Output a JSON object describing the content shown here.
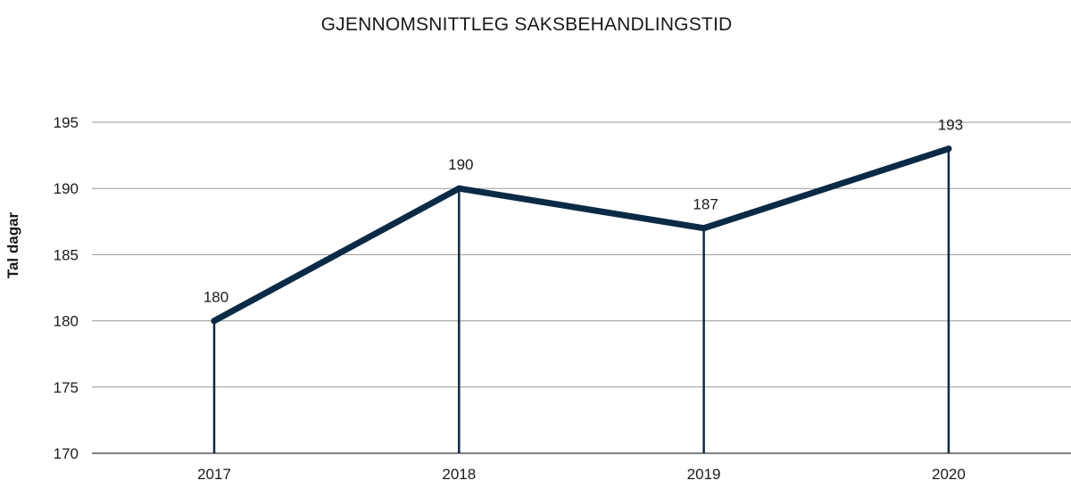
{
  "chart_data": {
    "type": "line",
    "title": "GJENNOMSNITTLEG SAKSBEHANDLINGSTID",
    "xlabel": "",
    "ylabel": "Tal dagar",
    "categories": [
      "2017",
      "2018",
      "2019",
      "2020"
    ],
    "series": [
      {
        "values": [
          180,
          190,
          187,
          193
        ]
      }
    ],
    "data_labels": [
      "180",
      "190",
      "187",
      "193"
    ],
    "ylim": [
      170,
      195
    ],
    "yticks": [
      170,
      175,
      180,
      185,
      190,
      195
    ],
    "ytick_labels": [
      "170",
      "175",
      "180",
      "185",
      "190",
      "195"
    ],
    "grid": true,
    "drop_lines": true,
    "colors": {
      "line": "#0b2a45",
      "grid": "#9a9a9a",
      "axis": "#333333"
    }
  }
}
